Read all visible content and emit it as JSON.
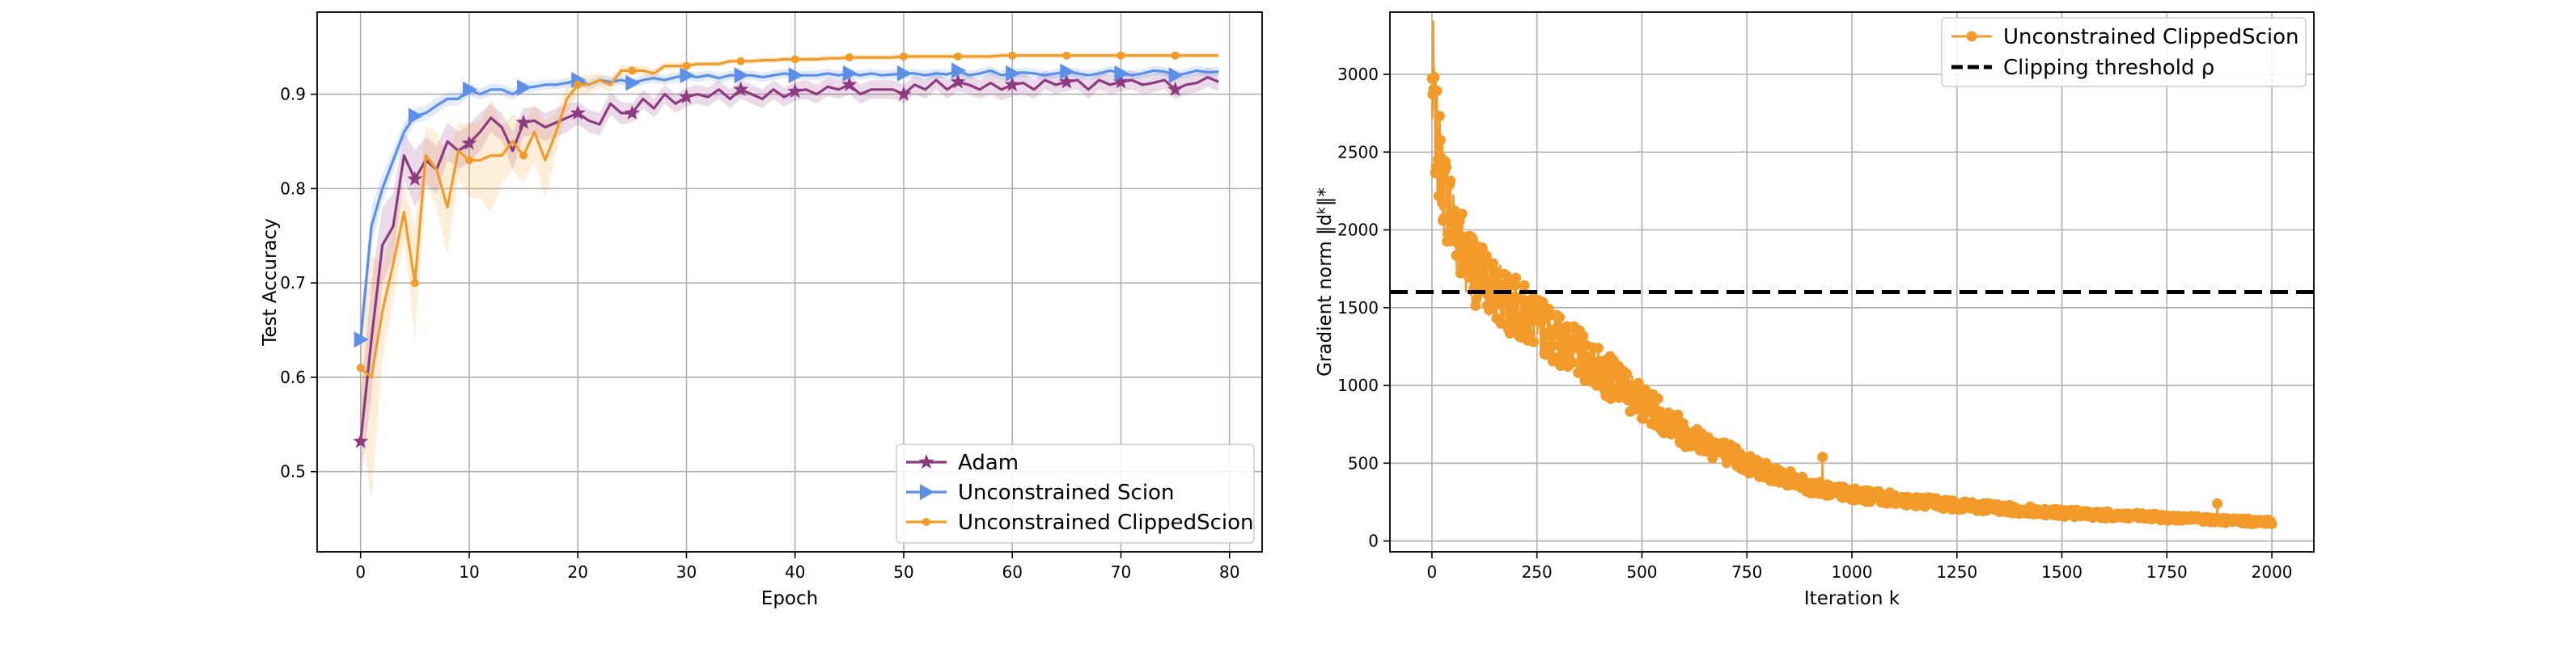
{
  "chart_data": [
    {
      "type": "line",
      "xlabel": "Epoch",
      "ylabel": "Test Accuracy",
      "xlim": [
        -4,
        83
      ],
      "ylim": [
        0.415,
        0.987
      ],
      "xticks": [
        0,
        10,
        20,
        30,
        40,
        50,
        60,
        70,
        80
      ],
      "yticks": [
        0.5,
        0.6,
        0.7,
        0.8,
        0.9
      ],
      "grid": true,
      "legend_position": "lower-right",
      "series": [
        {
          "name": "Adam",
          "color": "#8e3a80",
          "marker": "star",
          "marker_every": 5,
          "x": [
            0,
            1,
            2,
            3,
            4,
            5,
            6,
            7,
            8,
            9,
            10,
            11,
            12,
            13,
            14,
            15,
            16,
            17,
            18,
            19,
            20,
            21,
            22,
            23,
            24,
            25,
            26,
            27,
            28,
            29,
            30,
            31,
            32,
            33,
            34,
            35,
            36,
            37,
            38,
            39,
            40,
            41,
            42,
            43,
            44,
            45,
            46,
            47,
            48,
            49,
            50,
            51,
            52,
            53,
            54,
            55,
            56,
            57,
            58,
            59,
            60,
            61,
            62,
            63,
            64,
            65,
            66,
            67,
            68,
            69,
            70,
            71,
            72,
            73,
            74,
            75,
            76,
            77,
            78,
            79
          ],
          "values": [
            0.532,
            0.64,
            0.74,
            0.76,
            0.835,
            0.81,
            0.83,
            0.82,
            0.85,
            0.84,
            0.848,
            0.86,
            0.875,
            0.865,
            0.84,
            0.87,
            0.872,
            0.865,
            0.87,
            0.875,
            0.88,
            0.872,
            0.868,
            0.89,
            0.88,
            0.88,
            0.895,
            0.885,
            0.9,
            0.89,
            0.897,
            0.9,
            0.897,
            0.905,
            0.895,
            0.905,
            0.9,
            0.895,
            0.905,
            0.897,
            0.903,
            0.905,
            0.9,
            0.908,
            0.905,
            0.91,
            0.9,
            0.905,
            0.905,
            0.905,
            0.9,
            0.91,
            0.905,
            0.915,
            0.905,
            0.913,
            0.91,
            0.905,
            0.912,
            0.905,
            0.91,
            0.912,
            0.905,
            0.915,
            0.91,
            0.913,
            0.915,
            0.905,
            0.915,
            0.91,
            0.913,
            0.915,
            0.91,
            0.912,
            0.915,
            0.905,
            0.91,
            0.912,
            0.918,
            0.913
          ],
          "band": [
            0.045,
            0.06,
            0.04,
            0.035,
            0.025,
            0.03,
            0.025,
            0.025,
            0.02,
            0.02,
            0.02,
            0.02,
            0.015,
            0.015,
            0.02,
            0.015,
            0.015,
            0.015,
            0.015,
            0.015,
            0.012,
            0.012,
            0.012,
            0.012,
            0.012,
            0.01,
            0.01,
            0.01,
            0.01,
            0.01,
            0.01,
            0.01,
            0.01,
            0.01,
            0.01,
            0.01,
            0.01,
            0.01,
            0.01,
            0.01,
            0.01,
            0.01,
            0.01,
            0.01,
            0.01,
            0.01,
            0.01,
            0.01,
            0.01,
            0.01,
            0.01,
            0.01,
            0.01,
            0.01,
            0.01,
            0.01,
            0.01,
            0.01,
            0.012,
            0.012,
            0.012,
            0.012,
            0.01,
            0.01,
            0.01,
            0.01,
            0.01,
            0.01,
            0.01,
            0.01,
            0.01,
            0.01,
            0.01,
            0.01,
            0.01,
            0.01,
            0.01,
            0.01,
            0.01,
            0.01
          ]
        },
        {
          "name": "Unconstrained Scion",
          "color": "#5b8fe8",
          "marker": "triangle-right",
          "marker_every": 5,
          "x": [
            0,
            1,
            2,
            3,
            4,
            5,
            6,
            7,
            8,
            9,
            10,
            11,
            12,
            13,
            14,
            15,
            16,
            17,
            18,
            19,
            20,
            21,
            22,
            23,
            24,
            25,
            26,
            27,
            28,
            29,
            30,
            31,
            32,
            33,
            34,
            35,
            36,
            37,
            38,
            39,
            40,
            41,
            42,
            43,
            44,
            45,
            46,
            47,
            48,
            49,
            50,
            51,
            52,
            53,
            54,
            55,
            56,
            57,
            58,
            59,
            60,
            61,
            62,
            63,
            64,
            65,
            66,
            67,
            68,
            69,
            70,
            71,
            72,
            73,
            74,
            75,
            76,
            77,
            78,
            79
          ],
          "values": [
            0.64,
            0.76,
            0.8,
            0.83,
            0.86,
            0.877,
            0.88,
            0.888,
            0.895,
            0.895,
            0.905,
            0.9,
            0.905,
            0.905,
            0.9,
            0.907,
            0.908,
            0.91,
            0.91,
            0.912,
            0.915,
            0.91,
            0.915,
            0.913,
            0.915,
            0.912,
            0.915,
            0.917,
            0.915,
            0.918,
            0.92,
            0.918,
            0.92,
            0.917,
            0.92,
            0.92,
            0.92,
            0.918,
            0.92,
            0.922,
            0.92,
            0.92,
            0.92,
            0.922,
            0.92,
            0.922,
            0.92,
            0.922,
            0.92,
            0.921,
            0.922,
            0.922,
            0.92,
            0.922,
            0.921,
            0.925,
            0.92,
            0.922,
            0.925,
            0.92,
            0.922,
            0.923,
            0.922,
            0.92,
            0.922,
            0.924,
            0.922,
            0.92,
            0.922,
            0.925,
            0.922,
            0.92,
            0.922,
            0.925,
            0.924,
            0.92,
            0.922,
            0.925,
            0.923,
            0.924
          ],
          "band": [
            0.02,
            0.02,
            0.015,
            0.012,
            0.01,
            0.008,
            0.008,
            0.008,
            0.007,
            0.007,
            0.006,
            0.006,
            0.006,
            0.006,
            0.006,
            0.006,
            0.005,
            0.005,
            0.005,
            0.005,
            0.005,
            0.005,
            0.005,
            0.005,
            0.005,
            0.005,
            0.005,
            0.005,
            0.005,
            0.005,
            0.005,
            0.005,
            0.005,
            0.005,
            0.005,
            0.005,
            0.005,
            0.005,
            0.005,
            0.005,
            0.005,
            0.005,
            0.005,
            0.005,
            0.005,
            0.005,
            0.005,
            0.005,
            0.005,
            0.005,
            0.005,
            0.005,
            0.005,
            0.005,
            0.005,
            0.005,
            0.005,
            0.005,
            0.005,
            0.005,
            0.005,
            0.005,
            0.005,
            0.005,
            0.005,
            0.005,
            0.005,
            0.005,
            0.005,
            0.005,
            0.005,
            0.005,
            0.005,
            0.005,
            0.005,
            0.005,
            0.005,
            0.005,
            0.005,
            0.005
          ]
        },
        {
          "name": "Unconstrained ClippedScion",
          "color": "#f39b2a",
          "marker": "dot",
          "marker_every": 5,
          "x": [
            0,
            1,
            2,
            3,
            4,
            5,
            6,
            7,
            8,
            9,
            10,
            11,
            12,
            13,
            14,
            15,
            16,
            17,
            18,
            19,
            20,
            21,
            22,
            23,
            24,
            25,
            26,
            27,
            28,
            29,
            30,
            31,
            32,
            33,
            34,
            35,
            36,
            37,
            38,
            39,
            40,
            41,
            42,
            43,
            44,
            45,
            46,
            47,
            48,
            49,
            50,
            51,
            52,
            53,
            54,
            55,
            56,
            57,
            58,
            59,
            60,
            61,
            62,
            63,
            64,
            65,
            66,
            67,
            68,
            69,
            70,
            71,
            72,
            73,
            74,
            75,
            76,
            77,
            78,
            79
          ],
          "values": [
            0.61,
            0.6,
            0.67,
            0.72,
            0.775,
            0.7,
            0.835,
            0.82,
            0.78,
            0.84,
            0.83,
            0.83,
            0.835,
            0.835,
            0.85,
            0.835,
            0.86,
            0.83,
            0.86,
            0.895,
            0.91,
            0.91,
            0.915,
            0.91,
            0.925,
            0.925,
            0.925,
            0.922,
            0.93,
            0.93,
            0.93,
            0.932,
            0.932,
            0.932,
            0.935,
            0.935,
            0.935,
            0.936,
            0.936,
            0.937,
            0.937,
            0.937,
            0.937,
            0.938,
            0.938,
            0.939,
            0.939,
            0.939,
            0.939,
            0.939,
            0.94,
            0.94,
            0.94,
            0.94,
            0.94,
            0.94,
            0.94,
            0.94,
            0.94,
            0.941,
            0.941,
            0.941,
            0.941,
            0.941,
            0.941,
            0.941,
            0.941,
            0.941,
            0.941,
            0.941,
            0.941,
            0.941,
            0.941,
            0.941,
            0.941,
            0.941,
            0.941,
            0.941,
            0.941,
            0.941
          ],
          "band": [
            0.06,
            0.13,
            0.05,
            0.04,
            0.03,
            0.06,
            0.03,
            0.04,
            0.05,
            0.03,
            0.04,
            0.04,
            0.06,
            0.03,
            0.03,
            0.03,
            0.03,
            0.04,
            0.02,
            0.015,
            0.01,
            0.01,
            0.008,
            0.008,
            0.006,
            0.005,
            0.005,
            0.005,
            0.004,
            0.004,
            0.004,
            0.003,
            0.003,
            0.003,
            0.003,
            0.003,
            0.003,
            0.003,
            0.003,
            0.003,
            0.003,
            0.003,
            0.003,
            0.003,
            0.003,
            0.003,
            0.003,
            0.003,
            0.003,
            0.003,
            0.003,
            0.003,
            0.003,
            0.003,
            0.003,
            0.003,
            0.003,
            0.003,
            0.003,
            0.003,
            0.003,
            0.003,
            0.003,
            0.003,
            0.003,
            0.003,
            0.003,
            0.003,
            0.003,
            0.003,
            0.003,
            0.003,
            0.003,
            0.003,
            0.003,
            0.003,
            0.003,
            0.003,
            0.003,
            0.003
          ]
        }
      ]
    },
    {
      "type": "line",
      "xlabel": "Iteration k",
      "ylabel": "Gradient norm ‖dᵏ‖*",
      "xlim": [
        -100,
        2100
      ],
      "ylim": [
        -70,
        3400
      ],
      "xticks": [
        0,
        250,
        500,
        750,
        1000,
        1250,
        1500,
        1750,
        2000
      ],
      "yticks": [
        0,
        500,
        1000,
        1500,
        2000,
        2500,
        3000
      ],
      "grid": true,
      "legend_position": "upper-right",
      "decay_model": {
        "x": [
          0,
          10,
          30,
          60,
          100,
          150,
          200,
          250,
          300,
          400,
          500,
          600,
          750,
          900,
          1000,
          1250,
          1500,
          1750,
          2000
        ],
        "y": [
          2900,
          2600,
          2250,
          1950,
          1750,
          1600,
          1500,
          1400,
          1300,
          1100,
          900,
          700,
          500,
          350,
          300,
          230,
          180,
          150,
          120
        ]
      },
      "series": [
        {
          "name": "Unconstrained ClippedScion",
          "color": "#f39b2a",
          "marker": "dot",
          "points": 2000
        },
        {
          "name": "Clipping threshold ρ",
          "color": "#000000",
          "style": "dashed",
          "value": 1600
        }
      ]
    }
  ]
}
